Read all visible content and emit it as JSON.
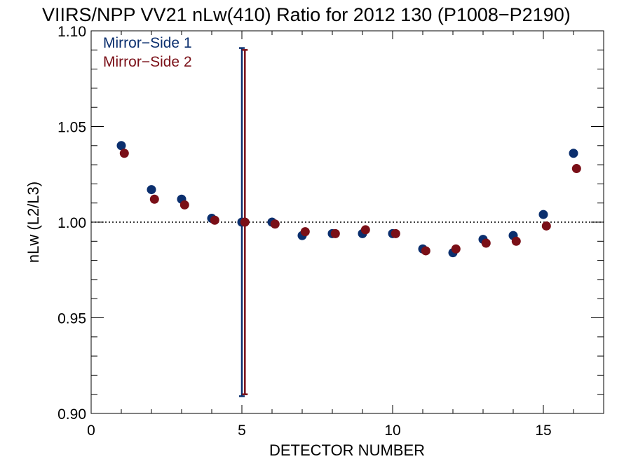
{
  "chart_data": {
    "type": "scatter",
    "title": "VIIRS/NPP VV21 nLw(410) Ratio for 2012 130 (P1008−P2190)",
    "xlabel": "DETECTOR NUMBER",
    "ylabel": "nLw (L2/L3)",
    "xlim": [
      0,
      17
    ],
    "ylim": [
      0.9,
      1.1
    ],
    "x_ticks": [
      0,
      5,
      10,
      15
    ],
    "x_tick_labels": [
      "0",
      "5",
      "10",
      "15"
    ],
    "y_ticks": [
      0.9,
      0.95,
      1.0,
      1.05,
      1.1
    ],
    "y_tick_labels": [
      "0.90",
      "0.95",
      "1.00",
      "1.05",
      "1.10"
    ],
    "reference_line": 1.0,
    "legend_position": "top-left",
    "series": [
      {
        "name": "Mirror−Side 1",
        "color": "#0b2f6e",
        "x": [
          1,
          2,
          3,
          4,
          5,
          6,
          7,
          8,
          9,
          10,
          11,
          12,
          13,
          14,
          15,
          16
        ],
        "values": [
          1.04,
          1.017,
          1.012,
          1.002,
          1.0,
          1.0,
          0.993,
          0.994,
          0.994,
          0.994,
          0.986,
          0.984,
          0.991,
          0.993,
          1.004,
          1.036
        ],
        "error_bar": {
          "x": 5,
          "low": 0.909,
          "high": 1.091
        }
      },
      {
        "name": "Mirror−Side 2",
        "color": "#7a0f17",
        "x": [
          1.1,
          2.1,
          3.1,
          4.1,
          5.1,
          6.1,
          7.1,
          8.1,
          9.1,
          10.1,
          11.1,
          12.1,
          13.1,
          14.1,
          15.1,
          16.1
        ],
        "values": [
          1.036,
          1.012,
          1.009,
          1.001,
          1.0,
          0.999,
          0.995,
          0.994,
          0.996,
          0.994,
          0.985,
          0.986,
          0.989,
          0.99,
          0.998,
          1.028
        ],
        "error_bar": {
          "x": 5.1,
          "low": 0.91,
          "high": 1.09
        }
      }
    ]
  }
}
